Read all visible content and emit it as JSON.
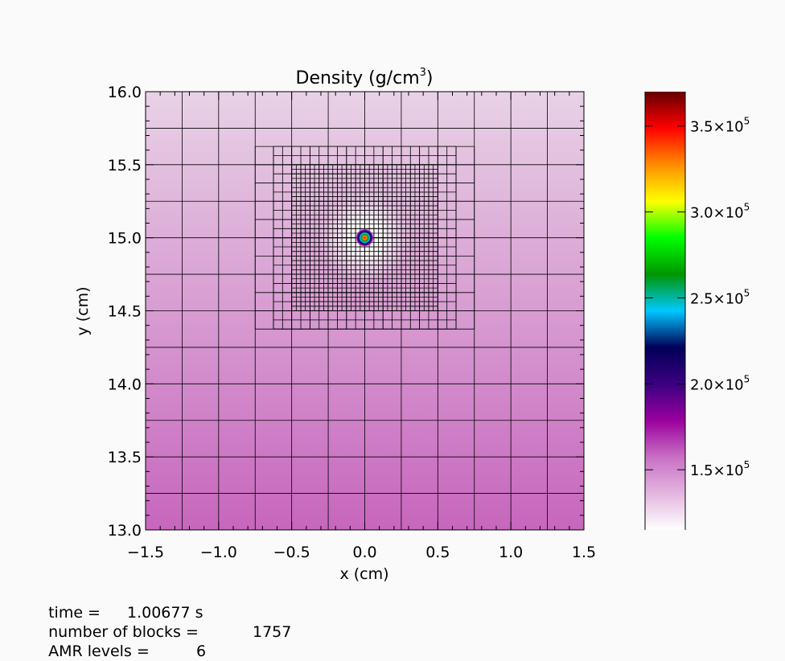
{
  "chart_data": {
    "type": "heatmap",
    "title": "Density (g/cm³)",
    "title_main": "Density (g/cm",
    "title_sup": "3",
    "title_end": ")",
    "xlabel": "x (cm)",
    "ylabel": "y (cm)",
    "xlim": [
      -1.5,
      1.5
    ],
    "ylim": [
      13.0,
      16.0
    ],
    "xticks": [
      {
        "value": -1.5,
        "label": "−1.5"
      },
      {
        "value": -1.0,
        "label": "−1.0"
      },
      {
        "value": -0.5,
        "label": "−0.5"
      },
      {
        "value": 0.0,
        "label": "0.0"
      },
      {
        "value": 0.5,
        "label": "0.5"
      },
      {
        "value": 1.0,
        "label": "1.0"
      },
      {
        "value": 1.5,
        "label": "1.5"
      }
    ],
    "yticks": [
      {
        "value": 13.0,
        "label": "13.0"
      },
      {
        "value": 13.5,
        "label": "13.5"
      },
      {
        "value": 14.0,
        "label": "14.0"
      },
      {
        "value": 14.5,
        "label": "14.5"
      },
      {
        "value": 15.0,
        "label": "15.0"
      },
      {
        "value": 15.5,
        "label": "15.5"
      },
      {
        "value": 16.0,
        "label": "16.0"
      }
    ],
    "source_center": [
      0.0,
      15.0
    ],
    "colorbar": {
      "range": [
        115000,
        370000
      ],
      "ticks": [
        {
          "value": 150000,
          "mantissa": "1.5",
          "exponent": "5"
        },
        {
          "value": 200000,
          "mantissa": "2.0",
          "exponent": "5"
        },
        {
          "value": 250000,
          "mantissa": "2.5",
          "exponent": "5"
        },
        {
          "value": 300000,
          "mantissa": "3.0",
          "exponent": "5"
        },
        {
          "value": 350000,
          "mantissa": "3.5",
          "exponent": "5"
        }
      ],
      "colors": [
        "#ffffff",
        "#e3b6df",
        "#c86fc3",
        "#9a009e",
        "#3a0080",
        "#000058",
        "#00c8ff",
        "#009600",
        "#00ff00",
        "#ffff00",
        "#ff8c00",
        "#ff0000",
        "#640000"
      ]
    },
    "amr_levels": [
      {
        "level": 1,
        "x_range": [
          -1.5,
          1.5
        ],
        "y_range": [
          13.0,
          16.0
        ],
        "cell": 0.25
      },
      {
        "level": 2,
        "x_range": [
          -0.75,
          0.75
        ],
        "y_range": [
          14.375,
          15.625
        ],
        "cell": 0.125
      },
      {
        "level": 3,
        "x_range": [
          -0.625,
          0.625
        ],
        "y_range": [
          14.375,
          15.625
        ],
        "cell": 0.0625
      },
      {
        "level": 4,
        "x_range": [
          -0.5,
          0.5
        ],
        "y_range": [
          14.5,
          15.5
        ],
        "cell": 0.03125
      }
    ],
    "background_colors": {
      "top": "#e8d2e6",
      "bottom": "#c766bd",
      "center": "#ffffff"
    }
  },
  "info": {
    "time_label": "time =",
    "time_value": "1.00677 s",
    "blocks_label": "number of blocks =",
    "blocks_value": "1757",
    "levels_label": "AMR levels =",
    "levels_value": "6"
  }
}
